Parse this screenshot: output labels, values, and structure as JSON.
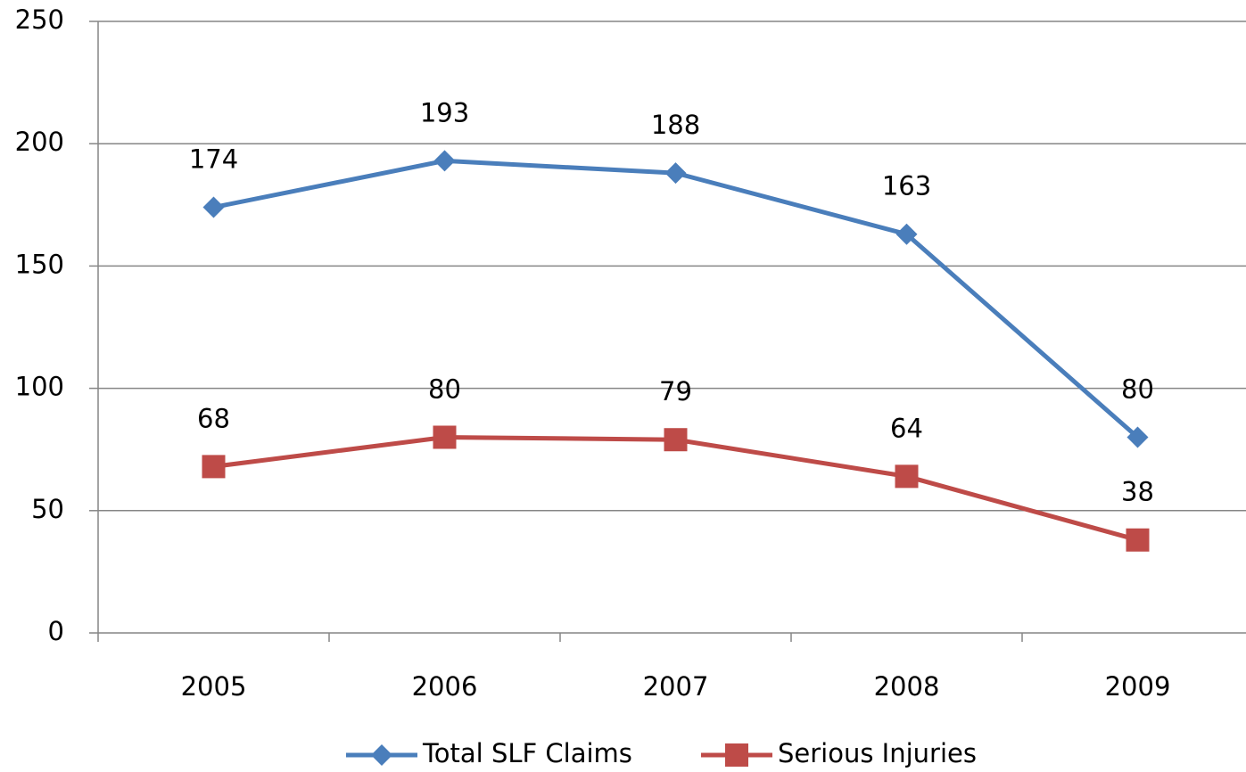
{
  "chart_data": {
    "type": "line",
    "categories": [
      "2005",
      "2006",
      "2007",
      "2008",
      "2009"
    ],
    "series": [
      {
        "name": "Total SLF Claims",
        "color": "#4a7ebb",
        "marker": "diamond",
        "values": [
          174,
          193,
          188,
          163,
          80
        ]
      },
      {
        "name": "Serious Injuries",
        "color": "#be4b48",
        "marker": "square",
        "values": [
          68,
          80,
          79,
          64,
          38
        ]
      }
    ],
    "ylim": [
      0,
      250
    ],
    "yticks": [
      0,
      50,
      100,
      150,
      200,
      250
    ],
    "grid": true,
    "legend": "bottom"
  }
}
